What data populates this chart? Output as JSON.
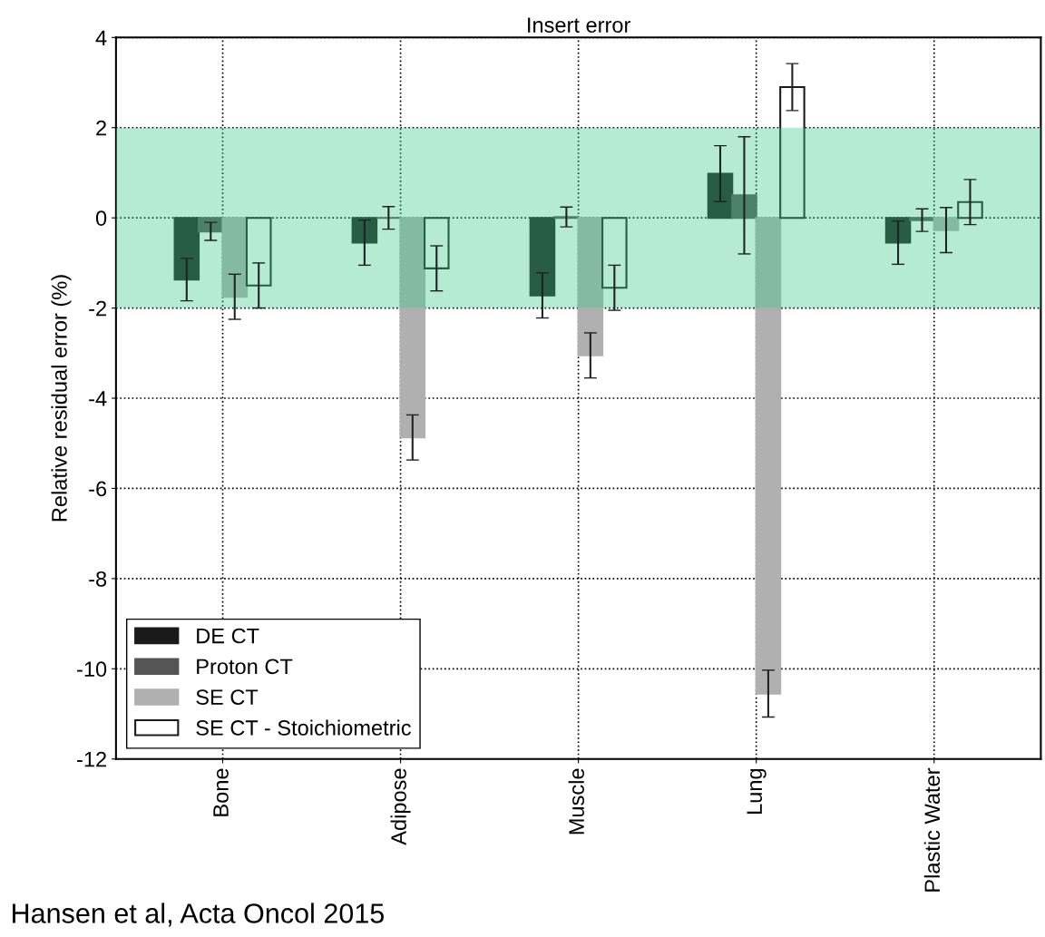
{
  "chart_data": {
    "type": "bar",
    "title": "Insert error",
    "ylabel": "Relative residual error (%)",
    "categories": [
      "Bone",
      "Adipose",
      "Muscle",
      "Lung",
      "Plastic Water"
    ],
    "series": [
      {
        "name": "DE CT",
        "color": "#1a1a1a",
        "values": [
          -1.37,
          -0.55,
          -1.72,
          0.98,
          -0.55
        ],
        "errors": [
          0.47,
          0.5,
          0.5,
          0.62,
          0.48
        ]
      },
      {
        "name": "Proton CT",
        "color": "#555555",
        "values": [
          -0.3,
          0.0,
          0.02,
          0.5,
          -0.05
        ],
        "errors": [
          0.2,
          0.25,
          0.22,
          1.3,
          0.25
        ]
      },
      {
        "name": "SE CT",
        "color": "#b0b0b0",
        "values": [
          -1.75,
          -4.87,
          -3.05,
          -10.55,
          -0.27
        ],
        "errors": [
          0.5,
          0.5,
          0.5,
          0.52,
          0.5
        ]
      },
      {
        "name": "SE CT - Stoichiometric",
        "color": "#ffffff",
        "values": [
          -1.5,
          -1.12,
          -1.55,
          2.9,
          0.35
        ],
        "errors": [
          0.5,
          0.5,
          0.5,
          0.52,
          0.5
        ]
      }
    ],
    "ylim": [
      -12,
      4
    ],
    "yticks": [
      -12,
      -10,
      -8,
      -6,
      -4,
      -2,
      0,
      2,
      4
    ],
    "bands": [
      {
        "axis": "y",
        "from": -2,
        "to": 2,
        "color": "#3ccb8c"
      }
    ],
    "grid": true,
    "legend": "bottom left",
    "annotations": [
      "Hansen et al, Acta Oncol 2015"
    ]
  }
}
